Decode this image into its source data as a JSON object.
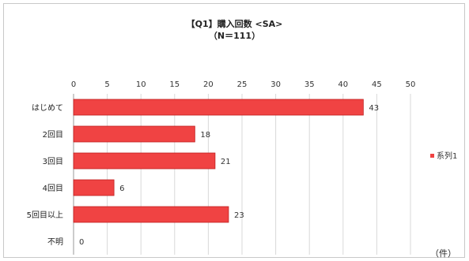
{
  "chart_data": {
    "type": "bar",
    "orientation": "horizontal",
    "title": "【Q1】購入回数 <SA>",
    "subtitle": "（N＝111）",
    "unit_label": "（件）",
    "categories": [
      "はじめて",
      "2回目",
      "3回目",
      "4回目",
      "5回目以上",
      "不明"
    ],
    "series": [
      {
        "name": "系列1",
        "values": [
          43,
          18,
          21,
          6,
          23,
          0
        ]
      }
    ],
    "xlim": [
      0,
      50
    ],
    "ticks": [
      0,
      5,
      10,
      15,
      20,
      25,
      30,
      35,
      40,
      45,
      50
    ],
    "grid": true,
    "legend": "right",
    "colors": {
      "bar": "#f04343",
      "bar_edge": "#c02020",
      "grid": "#d8d8d8"
    }
  }
}
